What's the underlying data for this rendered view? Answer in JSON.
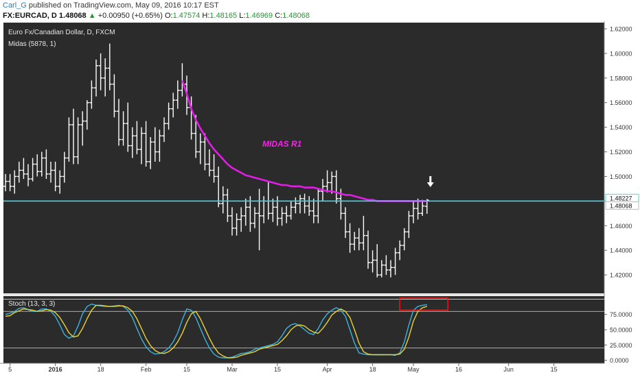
{
  "header": {
    "user": "Carl_G",
    "published": "published on TradingView.com, May 09, 2016 10:17 EST",
    "symbol": "FX:EURCAD, D",
    "last": "1.48068",
    "arrow": "▲",
    "change": "+0.00950 (+0.65%)",
    "o_label": "O:",
    "o_value": "1.47574",
    "h_label": "H:",
    "h_value": "1.48165",
    "l_label": "L:",
    "l_value": "1.46969",
    "c_label": "C:",
    "c_value": "1.48068"
  },
  "colors": {
    "pane_bg": "#2b2b2b",
    "bars": "#ffffff",
    "midas": "#e21ee6",
    "hline": "#40d8e0",
    "stoch_k": "#3ab4e0",
    "stoch_d": "#e8d43a",
    "box": "#d42020",
    "annotation": "#ff1ef0"
  },
  "chart_data": [
    {
      "type": "ohlc",
      "title": "Euro Fx/Canadian Dollar, D, FXCM",
      "indicator": "Midas (5878, 1)",
      "annotation": "MIDAS R1",
      "ylim": [
        1.405,
        1.625
      ],
      "yticks": [
        1.42,
        1.44,
        1.46,
        1.48,
        1.5,
        1.52,
        1.54,
        1.56,
        1.58,
        1.6,
        1.62
      ],
      "ytick_labels": [
        "1.42000",
        "1.44000",
        "1.46000",
        "1.48000",
        "1.50000",
        "1.52000",
        "1.54000",
        "1.56000",
        "1.58000",
        "1.60000",
        "1.62000"
      ],
      "price_labels": [
        {
          "value": 1.48227,
          "text": "1.48227"
        },
        {
          "value": 1.48068,
          "text": "1.48068"
        }
      ],
      "horizontal_line": 1.48,
      "x_labels": [
        {
          "bar": 1,
          "text": "5"
        },
        {
          "bar": 11,
          "text": "2016",
          "bold": true
        },
        {
          "bar": 21,
          "text": "18"
        },
        {
          "bar": 31,
          "text": "Feb"
        },
        {
          "bar": 40,
          "text": "15"
        },
        {
          "bar": 50,
          "text": "Mar"
        },
        {
          "bar": 60,
          "text": "15"
        },
        {
          "bar": 71,
          "text": "Apr"
        },
        {
          "bar": 81,
          "text": "18"
        },
        {
          "bar": 90,
          "text": "May"
        },
        {
          "bar": 100,
          "text": "16"
        },
        {
          "bar": 111,
          "text": "Jun"
        },
        {
          "bar": 121,
          "text": "15"
        }
      ],
      "ohlc": [
        [
          1.492,
          1.502,
          1.488,
          1.496
        ],
        [
          1.496,
          1.502,
          1.488,
          1.492
        ],
        [
          1.492,
          1.505,
          1.486,
          1.5
        ],
        [
          1.5,
          1.512,
          1.495,
          1.505
        ],
        [
          1.505,
          1.515,
          1.498,
          1.502
        ],
        [
          1.502,
          1.51,
          1.492,
          1.498
        ],
        [
          1.498,
          1.515,
          1.496,
          1.51
        ],
        [
          1.51,
          1.518,
          1.5,
          1.504
        ],
        [
          1.504,
          1.52,
          1.5,
          1.515
        ],
        [
          1.515,
          1.522,
          1.498,
          1.502
        ],
        [
          1.502,
          1.512,
          1.495,
          1.505
        ],
        [
          1.505,
          1.512,
          1.488,
          1.492
        ],
        [
          1.492,
          1.505,
          1.486,
          1.5
        ],
        [
          1.5,
          1.52,
          1.495,
          1.515
        ],
        [
          1.515,
          1.548,
          1.512,
          1.542
        ],
        [
          1.542,
          1.555,
          1.51,
          1.516
        ],
        [
          1.516,
          1.548,
          1.51,
          1.542
        ],
        [
          1.542,
          1.553,
          1.525,
          1.545
        ],
        [
          1.545,
          1.562,
          1.538,
          1.56
        ],
        [
          1.56,
          1.578,
          1.555,
          1.572
        ],
        [
          1.572,
          1.595,
          1.565,
          1.59
        ],
        [
          1.59,
          1.6,
          1.57,
          1.58
        ],
        [
          1.58,
          1.596,
          1.565,
          1.588
        ],
        [
          1.588,
          1.608,
          1.57,
          1.575
        ],
        [
          1.575,
          1.583,
          1.548,
          1.553
        ],
        [
          1.553,
          1.563,
          1.525,
          1.53
        ],
        [
          1.53,
          1.553,
          1.525,
          1.543
        ],
        [
          1.543,
          1.56,
          1.52,
          1.525
        ],
        [
          1.525,
          1.54,
          1.515,
          1.533
        ],
        [
          1.533,
          1.545,
          1.518,
          1.522
        ],
        [
          1.522,
          1.54,
          1.51,
          1.535
        ],
        [
          1.535,
          1.545,
          1.508,
          1.512
        ],
        [
          1.512,
          1.532,
          1.506,
          1.528
        ],
        [
          1.528,
          1.54,
          1.512,
          1.52
        ],
        [
          1.52,
          1.538,
          1.512,
          1.533
        ],
        [
          1.533,
          1.548,
          1.528,
          1.543
        ],
        [
          1.543,
          1.56,
          1.538,
          1.555
        ],
        [
          1.555,
          1.568,
          1.548,
          1.562
        ],
        [
          1.562,
          1.578,
          1.555,
          1.57
        ],
        [
          1.57,
          1.592,
          1.565,
          1.575
        ],
        [
          1.575,
          1.582,
          1.55,
          1.556
        ],
        [
          1.556,
          1.565,
          1.53,
          1.535
        ],
        [
          1.535,
          1.55,
          1.515,
          1.52
        ],
        [
          1.52,
          1.535,
          1.51,
          1.528
        ],
        [
          1.528,
          1.535,
          1.505,
          1.51
        ],
        [
          1.51,
          1.522,
          1.5,
          1.505
        ],
        [
          1.505,
          1.518,
          1.495,
          1.5
        ],
        [
          1.5,
          1.508,
          1.475,
          1.478
        ],
        [
          1.478,
          1.492,
          1.47,
          1.485
        ],
        [
          1.485,
          1.49,
          1.463,
          1.468
        ],
        [
          1.468,
          1.475,
          1.452,
          1.458
        ],
        [
          1.458,
          1.47,
          1.452,
          1.465
        ],
        [
          1.465,
          1.475,
          1.455,
          1.468
        ],
        [
          1.468,
          1.482,
          1.46,
          1.475
        ],
        [
          1.475,
          1.484,
          1.455,
          1.462
        ],
        [
          1.462,
          1.475,
          1.458,
          1.47
        ],
        [
          1.47,
          1.49,
          1.44,
          1.468
        ],
        [
          1.468,
          1.484,
          1.462,
          1.48
        ],
        [
          1.48,
          1.496,
          1.465,
          1.47
        ],
        [
          1.47,
          1.482,
          1.463,
          1.475
        ],
        [
          1.475,
          1.484,
          1.46,
          1.466
        ],
        [
          1.466,
          1.475,
          1.46,
          1.47
        ],
        [
          1.47,
          1.476,
          1.462,
          1.468
        ],
        [
          1.468,
          1.48,
          1.465,
          1.475
        ],
        [
          1.475,
          1.483,
          1.47,
          1.478
        ],
        [
          1.478,
          1.485,
          1.47,
          1.482
        ],
        [
          1.482,
          1.486,
          1.47,
          1.476
        ],
        [
          1.476,
          1.484,
          1.468,
          1.472
        ],
        [
          1.472,
          1.482,
          1.462,
          1.468
        ],
        [
          1.468,
          1.49,
          1.462,
          1.488
        ],
        [
          1.488,
          1.498,
          1.48,
          1.492
        ],
        [
          1.492,
          1.505,
          1.487,
          1.495
        ],
        [
          1.495,
          1.504,
          1.486,
          1.5
        ],
        [
          1.5,
          1.505,
          1.478,
          1.482
        ],
        [
          1.482,
          1.49,
          1.465,
          1.47
        ],
        [
          1.47,
          1.475,
          1.45,
          1.455
        ],
        [
          1.455,
          1.462,
          1.438,
          1.445
        ],
        [
          1.445,
          1.455,
          1.44,
          1.45
        ],
        [
          1.45,
          1.458,
          1.44,
          1.446
        ],
        [
          1.446,
          1.468,
          1.44,
          1.452
        ],
        [
          1.452,
          1.456,
          1.425,
          1.43
        ],
        [
          1.43,
          1.44,
          1.422,
          1.432
        ],
        [
          1.432,
          1.445,
          1.418,
          1.42
        ],
        [
          1.42,
          1.432,
          1.418,
          1.428
        ],
        [
          1.428,
          1.436,
          1.42,
          1.424
        ],
        [
          1.424,
          1.432,
          1.418,
          1.426
        ],
        [
          1.426,
          1.442,
          1.42,
          1.438
        ],
        [
          1.438,
          1.448,
          1.432,
          1.444
        ],
        [
          1.444,
          1.458,
          1.44,
          1.455
        ],
        [
          1.455,
          1.472,
          1.45,
          1.468
        ],
        [
          1.468,
          1.48,
          1.462,
          1.474
        ],
        [
          1.474,
          1.482,
          1.465,
          1.47
        ],
        [
          1.47,
          1.481,
          1.468,
          1.476
        ],
        [
          1.47574,
          1.48165,
          1.46969,
          1.48068
        ]
      ],
      "midas_line": {
        "start_bar": 39,
        "points": [
          1.578,
          1.567,
          1.555,
          1.546,
          1.539,
          1.533,
          1.527,
          1.522,
          1.518,
          1.514,
          1.51,
          1.507,
          1.505,
          1.503,
          1.501,
          1.5,
          1.499,
          1.498,
          1.497,
          1.496,
          1.495,
          1.494,
          1.493,
          1.493,
          1.492,
          1.492,
          1.492,
          1.491,
          1.491,
          1.491,
          1.49,
          1.489,
          1.488,
          1.488,
          1.487,
          1.486,
          1.485,
          1.485,
          1.484,
          1.483,
          1.482,
          1.481,
          1.481,
          1.48,
          1.48,
          1.48,
          1.48,
          1.48,
          1.48,
          1.48,
          1.48,
          1.48,
          1.48,
          1.48,
          1.48
        ]
      },
      "arrow_bar": 93
    },
    {
      "type": "line",
      "title": "Stoch (13, 3, 3)",
      "ylim": [
        -5,
        105
      ],
      "yticks": [
        0,
        25,
        50,
        75
      ],
      "ytick_labels": [
        "0.0000",
        "25.0000",
        "50.0000",
        "75.0000"
      ],
      "reference_lines": [
        20,
        80,
        100
      ],
      "highlight_box": {
        "bars": [
          87,
          97
        ],
        "values": [
          82,
          102
        ]
      },
      "series": [
        {
          "key": "k",
          "values": [
            75,
            77,
            80,
            85,
            86,
            83,
            80,
            80,
            84,
            84,
            80,
            72,
            58,
            42,
            36,
            40,
            56,
            76,
            88,
            92,
            90,
            89,
            88,
            88,
            89,
            90,
            88,
            82,
            70,
            52,
            35,
            22,
            14,
            10,
            11,
            14,
            20,
            30,
            45,
            66,
            84,
            82,
            70,
            52,
            35,
            20,
            10,
            5,
            4,
            4,
            5,
            8,
            11,
            12,
            14,
            18,
            20,
            22,
            24,
            26,
            30,
            40,
            52,
            58,
            60,
            56,
            50,
            44,
            42,
            52,
            66,
            76,
            82,
            86,
            82,
            72,
            50,
            28,
            12,
            10,
            9,
            9,
            9,
            9,
            9,
            9,
            8,
            12,
            30,
            58,
            82,
            88,
            90,
            91
          ]
        },
        {
          "key": "d",
          "values": [
            72,
            73,
            78,
            81,
            84,
            83,
            82,
            80,
            81,
            83,
            82,
            78,
            70,
            58,
            45,
            38,
            40,
            52,
            68,
            82,
            90,
            90,
            89,
            88,
            88,
            89,
            89,
            86,
            80,
            68,
            52,
            36,
            24,
            16,
            12,
            11,
            14,
            20,
            30,
            44,
            62,
            76,
            80,
            68,
            52,
            36,
            22,
            12,
            7,
            4,
            4,
            5,
            8,
            10,
            12,
            14,
            18,
            20,
            22,
            24,
            26,
            32,
            40,
            50,
            56,
            58,
            56,
            50,
            46,
            44,
            52,
            62,
            74,
            80,
            84,
            80,
            70,
            50,
            28,
            14,
            10,
            9,
            9,
            9,
            9,
            9,
            9,
            10,
            18,
            38,
            64,
            80,
            86,
            88
          ]
        }
      ]
    }
  ]
}
